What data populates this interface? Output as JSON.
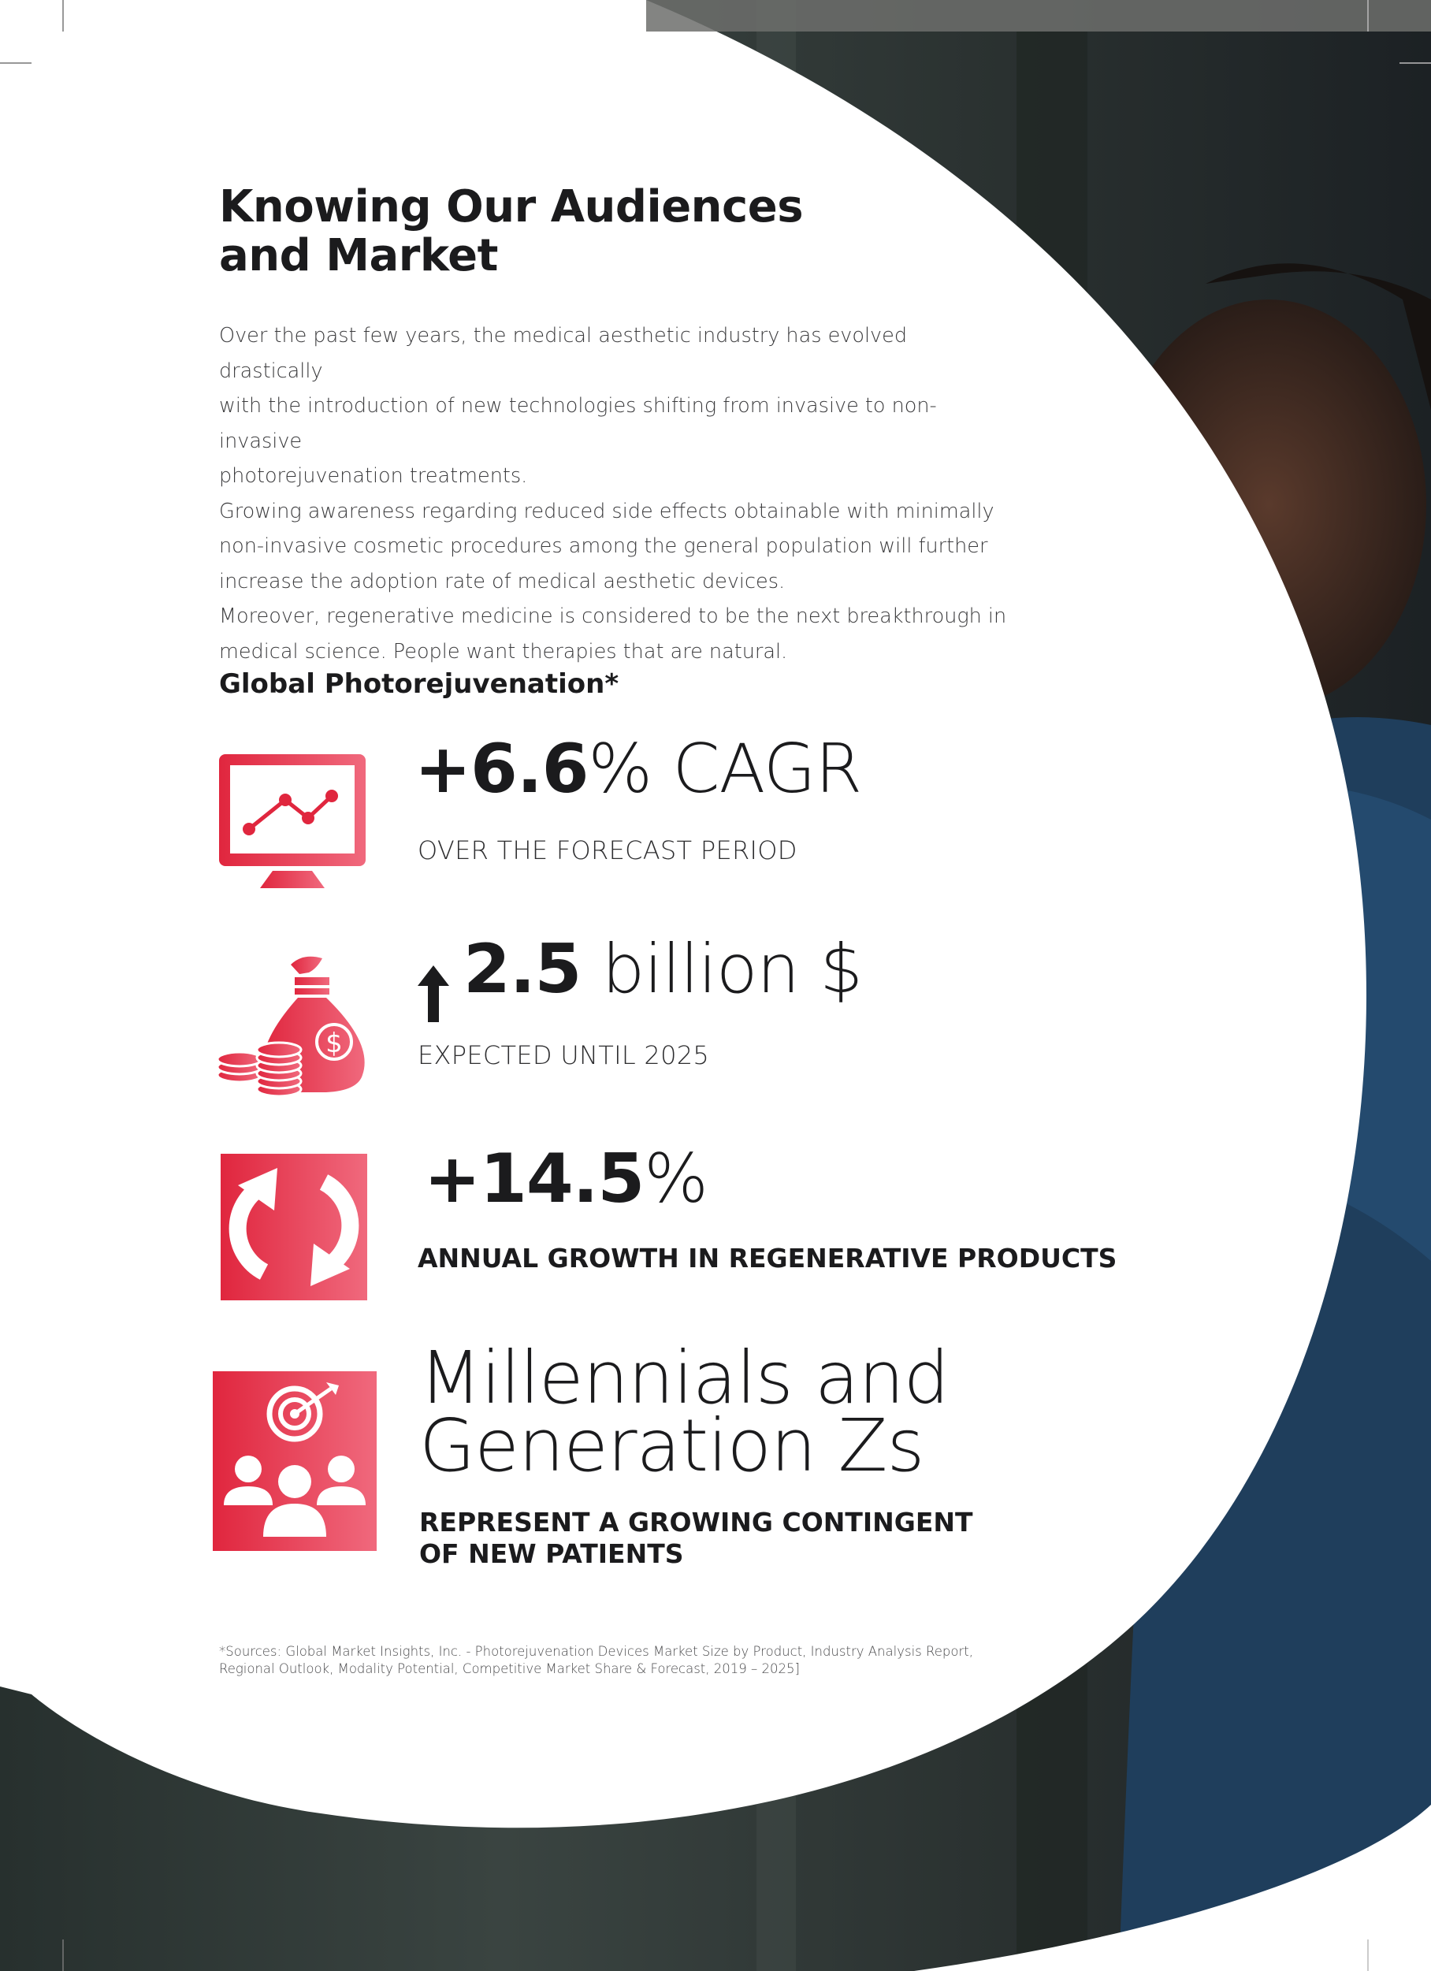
{
  "page": {
    "title_lines": [
      "Knowing Our Audiences",
      "and Market"
    ],
    "intro_paragraphs": [
      [
        "Over the past few years, the medical aesthetic industry has evolved drastically",
        "with the introduction of new technologies shifting from invasive to non-invasive",
        "photorejuvenation treatments."
      ],
      [
        "Growing awareness regarding reduced side effects obtainable with minimally",
        "non-invasive cosmetic procedures among the general population will further",
        "increase the adoption rate of medical aesthetic devices."
      ],
      [
        "Moreover, regenerative medicine is considered to be the next breakthrough in",
        "medical science. People want therapies that are natural."
      ]
    ],
    "section_heading": "Global Photorejuvenation*",
    "stats": [
      {
        "value": "+6.6",
        "rest": "% CAGR",
        "subtitle": "OVER THE FORECAST PERIOD",
        "icon": "monitor-chart-icon"
      },
      {
        "value": "2.5",
        "rest": " billion $",
        "subtitle": "EXPECTED UNTIL 2025",
        "icon": "money-bag-icon"
      },
      {
        "value": "+14.5",
        "rest": "%",
        "subtitle": "ANNUAL GROWTH IN REGENERATIVE PRODUCTS",
        "icon": "refresh-icon"
      },
      {
        "value_lines": [
          "Millennials and",
          "Generation Zs"
        ],
        "subtitle_lines": [
          "REPRESENT A GROWING CONTINGENT",
          "OF NEW PATIENTS"
        ],
        "icon": "target-audience-icon"
      }
    ],
    "footnote_lines": [
      "*Sources: Global Market Insights, Inc. - Photorejuvenation Devices Market Size by Product, Industry Analysis Report,",
      "Regional Outlook, Modality Potential, Competitive Market Share & Forecast, 2019 – 2025]"
    ],
    "colors": {
      "accent_red": "#e0263e",
      "accent_pink": "#f0697d",
      "text_dark": "#1b1b1d",
      "photo_bg": "#2f3633"
    }
  }
}
